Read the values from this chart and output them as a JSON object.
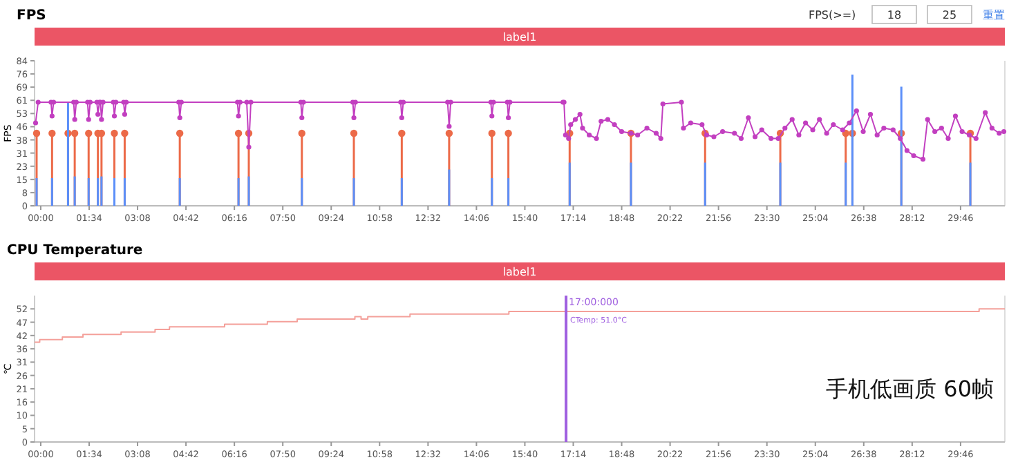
{
  "chart_data": [
    {
      "type": "line",
      "title": "FPS",
      "subtitle": "label1",
      "ylabel": "FPS",
      "xlim": [
        -12,
        1872
      ],
      "ylim": [
        0,
        84
      ],
      "xticks": [
        {
          "value": 0,
          "label": "00:00"
        },
        {
          "value": 94,
          "label": "01:34"
        },
        {
          "value": 188,
          "label": "03:08"
        },
        {
          "value": 282,
          "label": "04:42"
        },
        {
          "value": 376,
          "label": "06:16"
        },
        {
          "value": 470,
          "label": "07:50"
        },
        {
          "value": 564,
          "label": "09:24"
        },
        {
          "value": 658,
          "label": "10:58"
        },
        {
          "value": 752,
          "label": "12:32"
        },
        {
          "value": 846,
          "label": "14:06"
        },
        {
          "value": 940,
          "label": "15:40"
        },
        {
          "value": 1034,
          "label": "17:14"
        },
        {
          "value": 1128,
          "label": "18:48"
        },
        {
          "value": 1222,
          "label": "20:22"
        },
        {
          "value": 1316,
          "label": "21:56"
        },
        {
          "value": 1410,
          "label": "23:30"
        },
        {
          "value": 1504,
          "label": "25:04"
        },
        {
          "value": 1598,
          "label": "26:38"
        },
        {
          "value": 1692,
          "label": "28:12"
        },
        {
          "value": 1786,
          "label": "29:46"
        }
      ],
      "yticks": [
        0,
        {
          "value": 7.64,
          "label": "8"
        },
        {
          "value": 15.27,
          "label": "15"
        },
        {
          "value": 22.91,
          "label": "23"
        },
        {
          "value": 30.55,
          "label": "31"
        },
        {
          "value": 38.18,
          "label": "38"
        },
        {
          "value": 45.82,
          "label": "46"
        },
        {
          "value": 53.45,
          "label": "53"
        },
        {
          "value": 61.09,
          "label": "61"
        },
        {
          "value": 68.73,
          "label": "69"
        },
        {
          "value": 76.36,
          "label": "76"
        },
        84
      ],
      "annotations": [
        "FPS(>=)",
        "18",
        "25",
        "重置"
      ],
      "series": [
        {
          "type": "lollipop",
          "color": "#ec6a48",
          "marker": "circle",
          "x": [
            -8,
            22,
            53,
            66,
            93,
            111,
            118,
            143,
            163,
            270,
            384,
            404,
            507,
            608,
            701,
            793,
            876,
            908,
            1027,
            1146,
            1290,
            1436,
            1563,
            1576,
            1671,
            1805
          ],
          "values": [
            42,
            42,
            42,
            42,
            42,
            42,
            42,
            42,
            42,
            42,
            42,
            42,
            42,
            42,
            42,
            42,
            42,
            42,
            42,
            42,
            42,
            42,
            42,
            42,
            42,
            42
          ]
        },
        {
          "type": "bar",
          "color": "#5b8ff9",
          "x": [
            -8,
            22,
            53,
            66,
            93,
            111,
            118,
            143,
            163,
            270,
            384,
            404,
            507,
            608,
            701,
            793,
            876,
            908,
            1027,
            1146,
            1290,
            1436,
            1563,
            1576,
            1671,
            1805
          ],
          "values": [
            16,
            16,
            60,
            17,
            16,
            16,
            17,
            16,
            16,
            16,
            16,
            17,
            16,
            16,
            16,
            21,
            16,
            16,
            25,
            25,
            25,
            25,
            25,
            76,
            69,
            25
          ]
        },
        {
          "color": "#c23fc0",
          "marker": "circle",
          "x": [
            -10,
            -5,
            20,
            22,
            25,
            64,
            66,
            69,
            91,
            93,
            96,
            109,
            111,
            114,
            116,
            118,
            121,
            141,
            143,
            146,
            161,
            163,
            166,
            268,
            270,
            273,
            382,
            384,
            387,
            400,
            404,
            408,
            505,
            507,
            510,
            606,
            608,
            611,
            699,
            701,
            704,
            790,
            793,
            796,
            874,
            876,
            879,
            906,
            908,
            911,
            1014,
            1016,
            1019,
            1025,
            1029,
            1038,
            1047,
            1052,
            1065,
            1079,
            1088,
            1101,
            1114,
            1128,
            1146,
            1159,
            1177,
            1195,
            1204,
            1208,
            1244,
            1248,
            1262,
            1284,
            1293,
            1307,
            1324,
            1347,
            1360,
            1374,
            1387,
            1400,
            1418,
            1432,
            1445,
            1459,
            1472,
            1485,
            1499,
            1512,
            1526,
            1539,
            1557,
            1570,
            1584,
            1597,
            1611,
            1624,
            1637,
            1655,
            1669,
            1682,
            1695,
            1713,
            1722,
            1736,
            1749,
            1762,
            1776,
            1789,
            1803,
            1816,
            1834,
            1847,
            1861,
            1870
          ],
          "values": [
            48,
            60,
            60,
            52,
            60,
            60,
            50,
            60,
            60,
            50,
            60,
            60,
            53,
            60,
            60,
            50,
            60,
            60,
            52,
            60,
            60,
            53,
            60,
            60,
            51,
            60,
            60,
            52,
            60,
            60,
            34,
            60,
            60,
            51,
            60,
            60,
            51,
            60,
            60,
            51,
            60,
            60,
            46,
            60,
            60,
            52,
            60,
            60,
            51,
            60,
            60,
            60,
            41,
            39,
            47,
            50,
            53,
            45,
            41,
            39,
            49,
            50,
            47,
            43,
            42,
            41,
            45,
            42,
            39,
            59,
            60,
            45,
            48,
            47,
            41,
            40,
            43,
            42,
            39,
            51,
            40,
            44,
            39,
            39,
            45,
            50,
            41,
            48,
            44,
            50,
            42,
            47,
            44,
            48,
            55,
            43,
            53,
            41,
            45,
            44,
            39,
            32,
            29,
            27,
            50,
            43,
            45,
            39,
            52,
            43,
            41,
            39,
            54,
            45,
            42,
            43
          ]
        }
      ]
    },
    {
      "type": "step",
      "title": "CPU Temperature",
      "subtitle": "label1",
      "ylabel": "℃",
      "xlim": [
        -12,
        1872
      ],
      "ylim": [
        0,
        57.2
      ],
      "xticks": [
        {
          "value": 0,
          "label": "00:00"
        },
        {
          "value": 94,
          "label": "01:34"
        },
        {
          "value": 188,
          "label": "03:08"
        },
        {
          "value": 282,
          "label": "04:42"
        },
        {
          "value": 376,
          "label": "06:16"
        },
        {
          "value": 470,
          "label": "07:50"
        },
        {
          "value": 564,
          "label": "09:24"
        },
        {
          "value": 658,
          "label": "10:58"
        },
        {
          "value": 752,
          "label": "12:32"
        },
        {
          "value": 846,
          "label": "14:06"
        },
        {
          "value": 940,
          "label": "15:40"
        },
        {
          "value": 1034,
          "label": "17:14"
        },
        {
          "value": 1128,
          "label": "18:48"
        },
        {
          "value": 1222,
          "label": "20:22"
        },
        {
          "value": 1316,
          "label": "21:56"
        },
        {
          "value": 1410,
          "label": "23:30"
        },
        {
          "value": 1504,
          "label": "25:04"
        },
        {
          "value": 1598,
          "label": "26:38"
        },
        {
          "value": 1692,
          "label": "28:12"
        },
        {
          "value": 1786,
          "label": "29:46"
        }
      ],
      "yticks": [
        0,
        {
          "value": 5.2,
          "label": "5"
        },
        {
          "value": 10.4,
          "label": "10"
        },
        {
          "value": 15.6,
          "label": "16"
        },
        {
          "value": 20.8,
          "label": "21"
        },
        26,
        {
          "value": 31.2,
          "label": "31"
        },
        {
          "value": 36.4,
          "label": "36"
        },
        {
          "value": 41.6,
          "label": "42"
        },
        {
          "value": 46.8,
          "label": "47"
        },
        52
      ],
      "ref_lines": [
        {
          "axis": "x",
          "value": 1020,
          "color": "#a060e0"
        }
      ],
      "annotations": [
        "17:00:000",
        {
          "text": "CTemp: 51.0°C",
          "x": 1020,
          "y": 51
        },
        "手机低画质 60帧"
      ],
      "series": [
        {
          "color": "#f4a09a",
          "x": [
            -12,
            -2,
            42,
            82,
            156,
            222,
            250,
            357,
            440,
            498,
            610,
            622,
            635,
            717,
            909,
            1822,
            1872
          ],
          "values": [
            39,
            40,
            41,
            42,
            43,
            44,
            45,
            46,
            47,
            48,
            49,
            48,
            49,
            50,
            51,
            52,
            52
          ]
        }
      ]
    }
  ]
}
